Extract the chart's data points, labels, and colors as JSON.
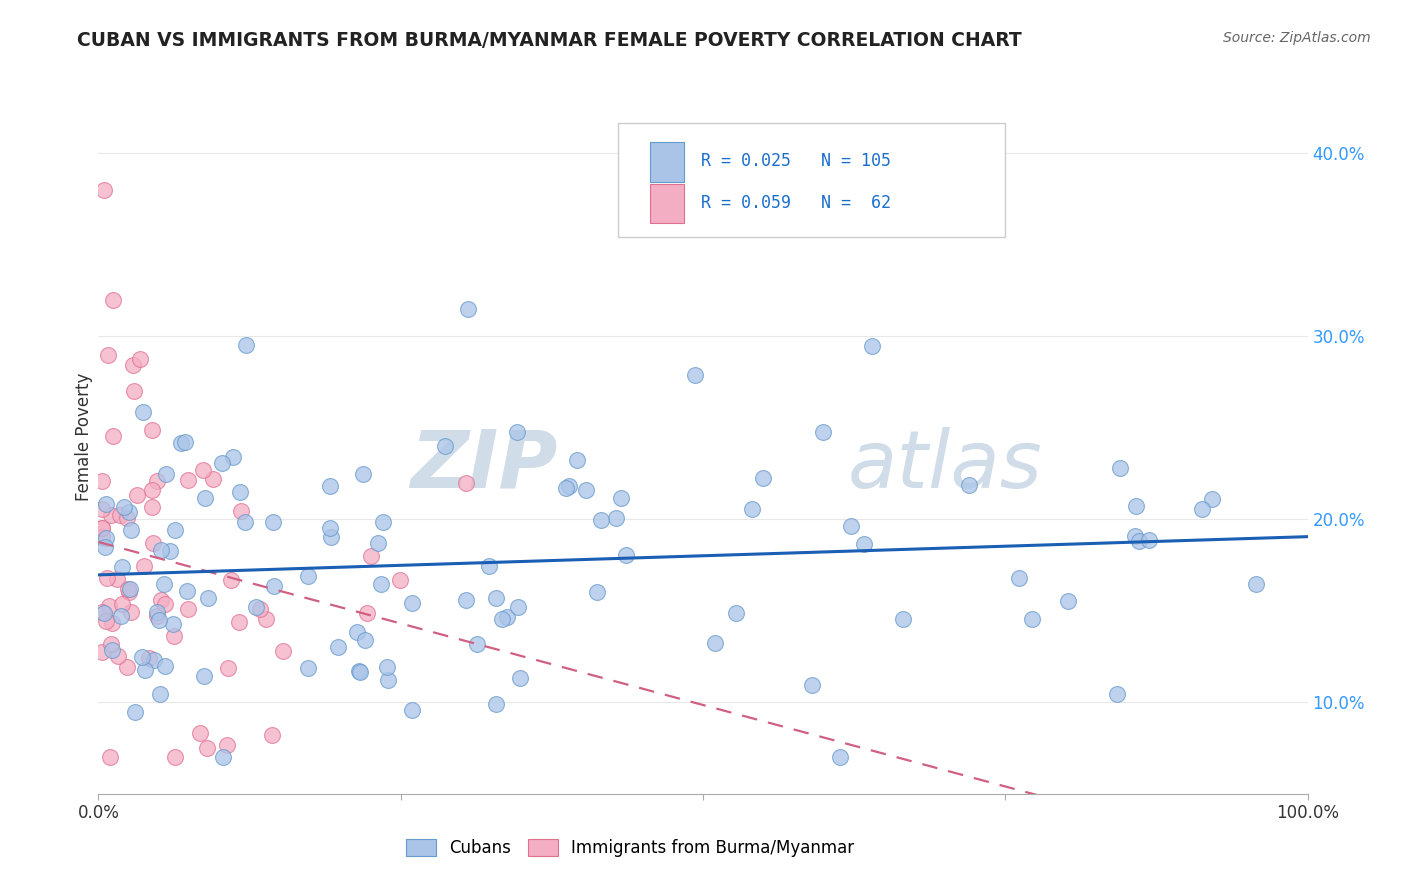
{
  "title": "CUBAN VS IMMIGRANTS FROM BURMA/MYANMAR FEMALE POVERTY CORRELATION CHART",
  "source": "Source: ZipAtlas.com",
  "ylabel": "Female Poverty",
  "xlim": [
    0,
    1
  ],
  "ylim": [
    0.05,
    0.44
  ],
  "ytick_vals": [
    0.1,
    0.2,
    0.3,
    0.4
  ],
  "ytick_labels": [
    "10.0%",
    "20.0%",
    "30.0%",
    "40.0%"
  ],
  "cuban_color": "#aac4e8",
  "burma_color": "#f4aec4",
  "cuban_edge": "#6699cc",
  "burma_edge": "#e07090",
  "trend_blue": "#1a5fb4",
  "trend_pink": "#d06080",
  "R_cuban": 0.025,
  "N_cuban": 105,
  "R_burma": 0.059,
  "N_burma": 62,
  "legend_color": "#1a6fce",
  "watermark_color": "#d0dde8",
  "background": "#ffffff",
  "grid_color": "#e8e8e8"
}
